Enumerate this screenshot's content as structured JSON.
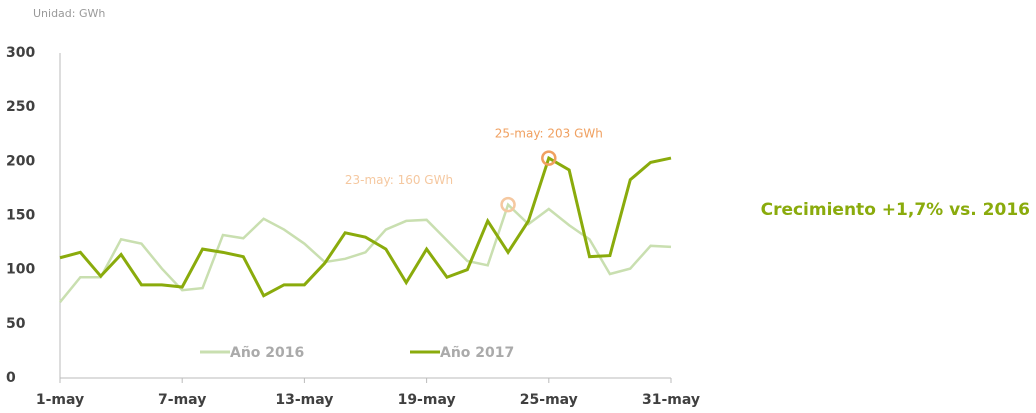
{
  "chart_data": {
    "type": "line",
    "subtitle": "Unidad: GWh",
    "categories": [
      "1-may",
      null,
      null,
      null,
      null,
      null,
      "7-may",
      null,
      null,
      null,
      null,
      null,
      "13-may",
      null,
      null,
      null,
      null,
      null,
      "19-may",
      null,
      null,
      null,
      null,
      null,
      "25-may",
      null,
      null,
      null,
      null,
      null,
      "31-may"
    ],
    "series": [
      {
        "name": "Año 2016",
        "color": "#c9dfb0",
        "values": [
          70,
          93,
          93,
          128,
          124,
          101,
          81,
          83,
          132,
          129,
          147,
          137,
          124,
          107,
          110,
          116,
          137,
          145,
          146,
          127,
          108,
          104,
          160,
          142,
          156,
          141,
          128,
          96,
          101,
          122,
          121
        ]
      },
      {
        "name": "Año 2017",
        "color": "#8aab0c",
        "values": [
          111,
          116,
          94,
          114,
          86,
          86,
          84,
          119,
          116,
          112,
          76,
          86,
          86,
          106,
          134,
          130,
          119,
          88,
          119,
          93,
          100,
          145,
          116,
          145,
          203,
          192,
          112,
          113,
          183,
          199,
          203
        ]
      }
    ],
    "annotations": [
      "23-may: 160 GWh",
      "25-may: 203 GWh"
    ],
    "side_note": "Crecimiento +1,7% vs. 2016",
    "ylim": [
      0,
      300
    ],
    "yticks": [
      0,
      50,
      100,
      150,
      200,
      250,
      300
    ]
  }
}
